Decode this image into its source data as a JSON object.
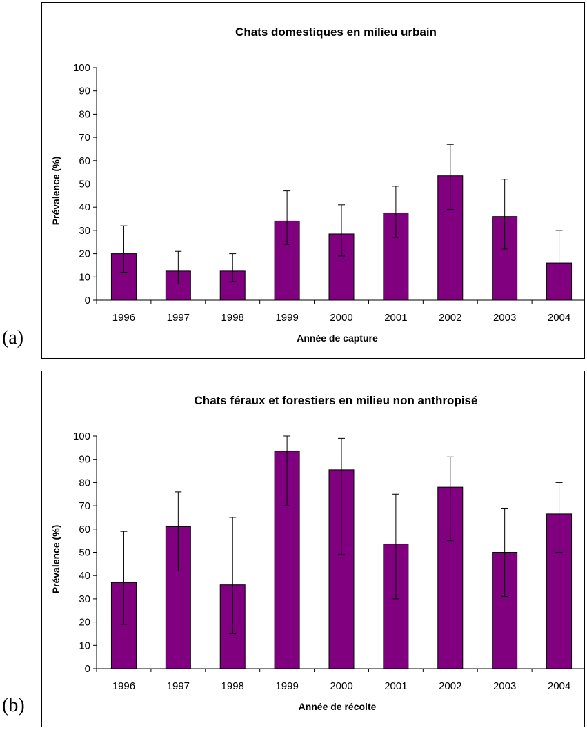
{
  "panels": [
    {
      "label": "(a)"
    },
    {
      "label": "(b)"
    }
  ],
  "chart_data": [
    {
      "type": "bar",
      "title": "Chats domestiques en milieu urbain",
      "xlabel": "Année de capture",
      "ylabel": "Prévalence (%)",
      "ylim": [
        0,
        100
      ],
      "yticks": [
        0,
        10,
        20,
        30,
        40,
        50,
        60,
        70,
        80,
        90,
        100
      ],
      "categories": [
        "1996",
        "1997",
        "1998",
        "1999",
        "2000",
        "2001",
        "2002",
        "2003",
        "2004"
      ],
      "series": [
        {
          "values": [
            20,
            12.5,
            12.5,
            34,
            28.5,
            37.5,
            53.5,
            36,
            16
          ],
          "error_low": [
            12,
            7,
            8,
            24,
            19,
            27,
            39,
            22,
            7
          ],
          "error_high": [
            32,
            21,
            20,
            47,
            41,
            49,
            67,
            52,
            30
          ]
        }
      ],
      "bar_color": "#800080",
      "grid": false,
      "legend": "none"
    },
    {
      "type": "bar",
      "title": "Chats féraux et forestiers en milieu non anthropisé",
      "xlabel": "Année de récolte",
      "ylabel": "Prévalence (%)",
      "ylim": [
        0,
        100
      ],
      "yticks": [
        0,
        10,
        20,
        30,
        40,
        50,
        60,
        70,
        80,
        90,
        100
      ],
      "categories": [
        "1996",
        "1997",
        "1998",
        "1999",
        "2000",
        "2001",
        "2002",
        "2003",
        "2004"
      ],
      "series": [
        {
          "values": [
            37,
            61,
            36,
            93.5,
            85.5,
            53.5,
            78,
            50,
            66.5
          ],
          "error_low": [
            19,
            42,
            15,
            70,
            49,
            30,
            55,
            31,
            50
          ],
          "error_high": [
            59,
            76,
            65,
            100,
            99,
            75,
            91,
            69,
            80
          ]
        }
      ],
      "bar_color": "#800080",
      "grid": false,
      "legend": "none"
    }
  ]
}
